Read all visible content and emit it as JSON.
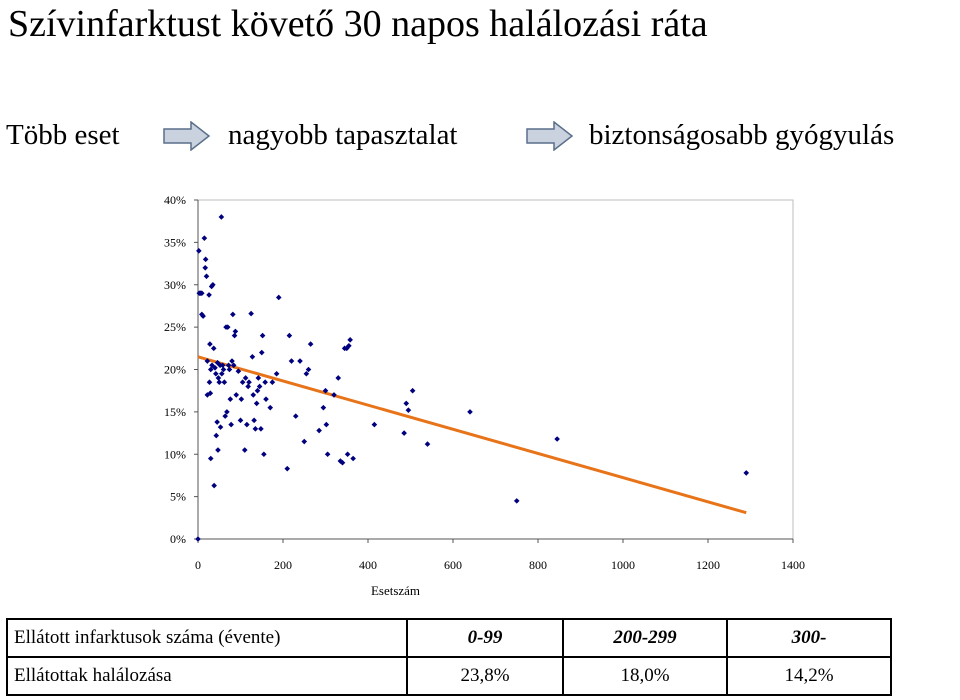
{
  "title": "Szívinfarktust követő 30 napos halálozási ráta",
  "flow": {
    "step1": "Több eset",
    "step2": "nagyobb tapasztalat",
    "step3": "biztonságosabb gyógyulás"
  },
  "colors": {
    "points": "#00007f",
    "trend": "#e8741a",
    "arrow_fill": "#c9d2de",
    "arrow_stroke": "#5a6f8a"
  },
  "chart_data": {
    "type": "scatter",
    "title": "",
    "xlabel": "Esetszám",
    "ylabel": "",
    "xlim": [
      0,
      1400
    ],
    "ylim": [
      0,
      40
    ],
    "x_ticks": [
      "0",
      "200",
      "400",
      "600",
      "800",
      "1000",
      "1200",
      "1400"
    ],
    "y_ticks": [
      "0%",
      "5%",
      "10%",
      "15%",
      "20%",
      "25%",
      "30%",
      "35%",
      "40%"
    ],
    "grid": false,
    "trendline": {
      "x": [
        0,
        1290
      ],
      "y": [
        21.5,
        3.1
      ]
    },
    "points": [
      [
        0,
        0
      ],
      [
        2,
        34
      ],
      [
        3,
        29
      ],
      [
        6,
        29
      ],
      [
        9,
        29
      ],
      [
        9,
        26.5
      ],
      [
        12,
        26.3
      ],
      [
        15,
        35.5
      ],
      [
        17,
        32
      ],
      [
        18,
        33
      ],
      [
        20,
        31
      ],
      [
        22,
        21
      ],
      [
        22,
        17
      ],
      [
        26,
        28.8
      ],
      [
        27,
        18.5
      ],
      [
        28,
        23
      ],
      [
        29,
        17.2
      ],
      [
        30,
        20
      ],
      [
        30,
        9.5
      ],
      [
        32,
        29.8
      ],
      [
        33,
        20.5
      ],
      [
        35,
        30
      ],
      [
        37,
        22.5
      ],
      [
        38,
        6.3
      ],
      [
        40,
        20.2
      ],
      [
        42,
        19.5
      ],
      [
        43,
        12.2
      ],
      [
        45,
        13.8
      ],
      [
        46,
        20.8
      ],
      [
        47,
        10.5
      ],
      [
        48,
        19
      ],
      [
        50,
        18.5
      ],
      [
        52,
        20.5
      ],
      [
        53,
        13.2
      ],
      [
        55,
        38
      ],
      [
        56,
        19.5
      ],
      [
        58,
        20.5
      ],
      [
        60,
        20
      ],
      [
        62,
        18.5
      ],
      [
        64,
        14.5
      ],
      [
        66,
        25
      ],
      [
        68,
        15
      ],
      [
        70,
        25
      ],
      [
        72,
        20.5
      ],
      [
        74,
        20
      ],
      [
        76,
        16.5
      ],
      [
        78,
        13.5
      ],
      [
        80,
        21
      ],
      [
        82,
        26.5
      ],
      [
        84,
        20.5
      ],
      [
        86,
        24
      ],
      [
        88,
        24.5
      ],
      [
        90,
        17
      ],
      [
        95,
        19.8
      ],
      [
        100,
        14
      ],
      [
        102,
        16.5
      ],
      [
        105,
        18.5
      ],
      [
        110,
        10.5
      ],
      [
        112,
        19
      ],
      [
        115,
        13.5
      ],
      [
        118,
        18
      ],
      [
        120,
        18.5
      ],
      [
        125,
        26.6
      ],
      [
        128,
        21.5
      ],
      [
        130,
        17
      ],
      [
        132,
        14
      ],
      [
        135,
        13
      ],
      [
        138,
        16
      ],
      [
        140,
        17.5
      ],
      [
        142,
        19
      ],
      [
        145,
        18
      ],
      [
        148,
        13
      ],
      [
        150,
        22
      ],
      [
        152,
        24
      ],
      [
        155,
        10
      ],
      [
        158,
        18.5
      ],
      [
        160,
        16.5
      ],
      [
        170,
        15.5
      ],
      [
        175,
        18.5
      ],
      [
        185,
        19.5
      ],
      [
        190,
        28.5
      ],
      [
        210,
        8.3
      ],
      [
        215,
        24
      ],
      [
        220,
        21
      ],
      [
        230,
        14.5
      ],
      [
        240,
        21
      ],
      [
        250,
        11.5
      ],
      [
        255,
        19.5
      ],
      [
        260,
        20
      ],
      [
        265,
        23
      ],
      [
        285,
        12.8
      ],
      [
        295,
        15.5
      ],
      [
        300,
        17.5
      ],
      [
        302,
        13.5
      ],
      [
        305,
        10
      ],
      [
        320,
        17
      ],
      [
        330,
        19
      ],
      [
        335,
        9.2
      ],
      [
        340,
        9
      ],
      [
        345,
        22.5
      ],
      [
        350,
        22.5
      ],
      [
        352,
        10
      ],
      [
        355,
        22.8
      ],
      [
        358,
        23.5
      ],
      [
        365,
        9.5
      ],
      [
        415,
        13.5
      ],
      [
        485,
        12.5
      ],
      [
        490,
        16
      ],
      [
        495,
        15.2
      ],
      [
        505,
        17.5
      ],
      [
        540,
        11.2
      ],
      [
        640,
        15
      ],
      [
        750,
        4.5
      ],
      [
        845,
        11.8
      ],
      [
        1290,
        7.8
      ]
    ]
  },
  "table": {
    "row1": {
      "label": "Ellátott infarktusok száma (évente)",
      "c1": "0-99",
      "c2": "200-299",
      "c3": "300-"
    },
    "row2": {
      "label": "Ellátottak halálozása",
      "c1": "23,8%",
      "c2": "18,0%",
      "c3": "14,2%"
    }
  }
}
